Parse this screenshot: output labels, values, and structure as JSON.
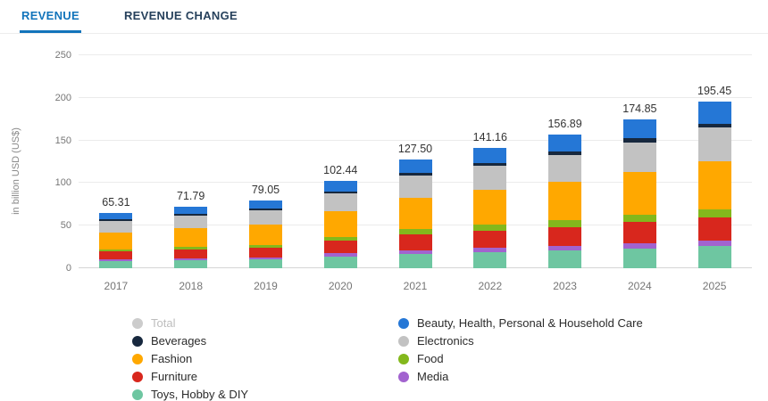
{
  "tabs": [
    {
      "label": "REVENUE",
      "active": true
    },
    {
      "label": "REVENUE CHANGE",
      "active": false
    }
  ],
  "chart_data": {
    "type": "bar",
    "stacked": true,
    "title": "",
    "ylabel": "in billion USD (US$)",
    "ylim": [
      0,
      250
    ],
    "yticks": [
      0,
      50,
      100,
      150,
      200,
      250
    ],
    "grid": true,
    "categories": [
      "2017",
      "2018",
      "2019",
      "2020",
      "2021",
      "2022",
      "2023",
      "2024",
      "2025"
    ],
    "totals": [
      "65.31",
      "71.79",
      "79.05",
      "102.44",
      "127.50",
      "141.16",
      "156.89",
      "174.85",
      "195.45"
    ],
    "series": [
      {
        "name": "Toys, Hobby & DIY",
        "color": "#6ec6a1",
        "values": [
          8,
          9,
          10,
          14,
          17,
          19,
          21,
          23.5,
          26
        ]
      },
      {
        "name": "Media",
        "color": "#a263cf",
        "values": [
          2.5,
          2.7,
          2.9,
          3.6,
          4.3,
          4.6,
          5,
          5.5,
          6
        ]
      },
      {
        "name": "Furniture",
        "color": "#d8271d",
        "values": [
          9,
          10,
          11,
          14.5,
          18.5,
          20.5,
          22.5,
          25,
          28
        ]
      },
      {
        "name": "Food",
        "color": "#83b81c",
        "values": [
          2.5,
          3,
          3.4,
          4.8,
          6,
          6.8,
          7.6,
          8.5,
          9.5
        ]
      },
      {
        "name": "Fashion",
        "color": "#ffa800",
        "values": [
          20,
          22,
          24,
          30,
          37,
          41,
          45.5,
          50.5,
          56.5
        ]
      },
      {
        "name": "Electronics",
        "color": "#c2c2c2",
        "values": [
          14,
          15,
          16.5,
          21,
          26,
          28.5,
          31.5,
          35,
          39
        ]
      },
      {
        "name": "Beverages",
        "color": "#17283e",
        "values": [
          1.5,
          1.7,
          1.9,
          2.5,
          3.2,
          3.6,
          4,
          4.5,
          5
        ]
      },
      {
        "name": "Beauty, Health, Personal & Household Care",
        "color": "#2577d6",
        "values": [
          7.81,
          8.39,
          9.35,
          12.04,
          15.5,
          17.16,
          19.79,
          22.35,
          25.45
        ]
      }
    ],
    "legend_position": "bottom"
  },
  "legend": {
    "columns": [
      [
        {
          "label": "Total",
          "color": "#cccccc",
          "muted": true
        },
        {
          "label": "Beverages",
          "color": "#17283e",
          "muted": false
        },
        {
          "label": "Fashion",
          "color": "#ffa800",
          "muted": false
        },
        {
          "label": "Furniture",
          "color": "#d8271d",
          "muted": false
        },
        {
          "label": "Toys, Hobby & DIY",
          "color": "#6ec6a1",
          "muted": false
        }
      ],
      [
        {
          "label": "Beauty, Health, Personal & Household Care",
          "color": "#2577d6",
          "muted": false
        },
        {
          "label": "Electronics",
          "color": "#c2c2c2",
          "muted": false
        },
        {
          "label": "Food",
          "color": "#83b81c",
          "muted": false
        },
        {
          "label": "Media",
          "color": "#a263cf",
          "muted": false
        }
      ]
    ]
  }
}
